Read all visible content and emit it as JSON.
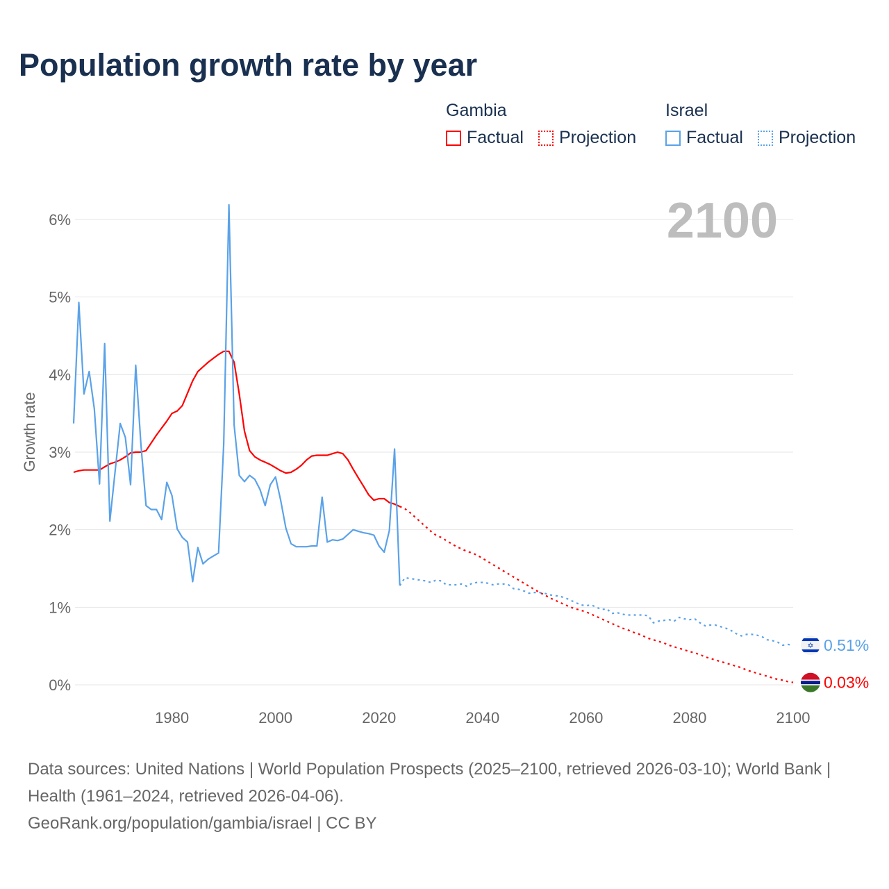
{
  "title": "Population growth rate by year",
  "legend": {
    "groups": [
      {
        "name": "Gambia",
        "color": "#ff0000",
        "factual_label": "Factual",
        "projection_label": "Projection"
      },
      {
        "name": "Israel",
        "color": "#5aa2e8",
        "factual_label": "Factual",
        "projection_label": "Projection"
      }
    ]
  },
  "source": {
    "line1": "Data sources: United Nations | World Population Prospects (2025–2100, retrieved 2026-03-10); World Bank | Health (1961–2024, retrieved 2026-04-06).",
    "line2": "GeoRank.org/population/gambia/israel | CC BY"
  },
  "chart_data": {
    "type": "line",
    "title": "Population growth rate by year",
    "ylabel": "Growth rate",
    "xlabel": "",
    "year_label": "2100",
    "xlim": [
      1961,
      2100
    ],
    "ylim": [
      0,
      6
    ],
    "x_ticks": [
      1980,
      2000,
      2020,
      2040,
      2060,
      2080,
      2100
    ],
    "y_ticks": [
      0,
      1,
      2,
      3,
      4,
      5,
      6
    ],
    "y_tick_labels": [
      "0%",
      "1%",
      "2%",
      "3%",
      "4%",
      "5%",
      "6%"
    ],
    "grid": true,
    "series": [
      {
        "name": "Gambia",
        "color": "#ff0000",
        "end_label": "0.03%",
        "factual_start": 1961,
        "factual": [
          2.74,
          2.76,
          2.77,
          2.77,
          2.77,
          2.77,
          2.81,
          2.85,
          2.87,
          2.9,
          2.94,
          2.99,
          3.0,
          3.0,
          3.02,
          3.12,
          3.22,
          3.31,
          3.4,
          3.5,
          3.53,
          3.6,
          3.76,
          3.92,
          4.04,
          4.1,
          4.16,
          4.21,
          4.26,
          4.3,
          4.3,
          4.16,
          3.75,
          3.27,
          3.02,
          2.94,
          2.9,
          2.87,
          2.84,
          2.8,
          2.76,
          2.73,
          2.74,
          2.78,
          2.83,
          2.9,
          2.95,
          2.96,
          2.96,
          2.96,
          2.98,
          3.0,
          2.98,
          2.9,
          2.78,
          2.67,
          2.56,
          2.45,
          2.38,
          2.4,
          2.4,
          2.35,
          2.33,
          2.3
        ],
        "projection_start": 2025,
        "projection": [
          2.27,
          2.22,
          2.16,
          2.1,
          2.04,
          1.98,
          1.93,
          1.9,
          1.86,
          1.82,
          1.78,
          1.75,
          1.72,
          1.7,
          1.67,
          1.63,
          1.59,
          1.55,
          1.51,
          1.47,
          1.43,
          1.39,
          1.35,
          1.31,
          1.27,
          1.23,
          1.19,
          1.16,
          1.12,
          1.09,
          1.06,
          1.03,
          1.0,
          0.98,
          0.96,
          0.94,
          0.91,
          0.88,
          0.85,
          0.82,
          0.79,
          0.76,
          0.73,
          0.71,
          0.68,
          0.66,
          0.63,
          0.6,
          0.58,
          0.56,
          0.54,
          0.51,
          0.49,
          0.47,
          0.45,
          0.43,
          0.41,
          0.39,
          0.36,
          0.34,
          0.32,
          0.3,
          0.28,
          0.26,
          0.24,
          0.22,
          0.19,
          0.17,
          0.15,
          0.13,
          0.11,
          0.09,
          0.07,
          0.06,
          0.04,
          0.03
        ]
      },
      {
        "name": "Israel",
        "color": "#5aa2e8",
        "end_label": "0.51%",
        "factual_start": 1961,
        "factual": [
          3.37,
          4.93,
          3.75,
          4.04,
          3.56,
          2.59,
          4.4,
          2.11,
          2.74,
          3.37,
          3.19,
          2.58,
          4.12,
          3.1,
          2.31,
          2.26,
          2.26,
          2.13,
          2.61,
          2.44,
          2.01,
          1.9,
          1.84,
          1.33,
          1.77,
          1.56,
          1.62,
          1.66,
          1.7,
          3.1,
          6.19,
          3.35,
          2.7,
          2.62,
          2.7,
          2.65,
          2.52,
          2.31,
          2.58,
          2.68,
          2.38,
          2.02,
          1.82,
          1.78,
          1.78,
          1.78,
          1.79,
          1.79,
          2.42,
          1.84,
          1.87,
          1.86,
          1.88,
          1.94,
          2.0,
          1.98,
          1.96,
          1.95,
          1.93,
          1.79,
          1.71,
          1.99,
          3.04,
          1.28
        ],
        "projection_start": 2025,
        "projection": [
          1.38,
          1.37,
          1.36,
          1.35,
          1.34,
          1.32,
          1.35,
          1.34,
          1.29,
          1.29,
          1.29,
          1.3,
          1.27,
          1.31,
          1.32,
          1.32,
          1.31,
          1.29,
          1.3,
          1.3,
          1.29,
          1.24,
          1.23,
          1.21,
          1.18,
          1.19,
          1.19,
          1.18,
          1.16,
          1.15,
          1.14,
          1.12,
          1.09,
          1.06,
          1.03,
          1.02,
          1.03,
          1.0,
          0.97,
          0.98,
          0.92,
          0.93,
          0.91,
          0.9,
          0.9,
          0.9,
          0.9,
          0.89,
          0.8,
          0.82,
          0.83,
          0.84,
          0.82,
          0.87,
          0.85,
          0.84,
          0.85,
          0.8,
          0.76,
          0.77,
          0.77,
          0.75,
          0.73,
          0.7,
          0.66,
          0.63,
          0.65,
          0.65,
          0.64,
          0.62,
          0.58,
          0.57,
          0.55,
          0.51,
          0.52,
          0.51
        ]
      }
    ]
  }
}
